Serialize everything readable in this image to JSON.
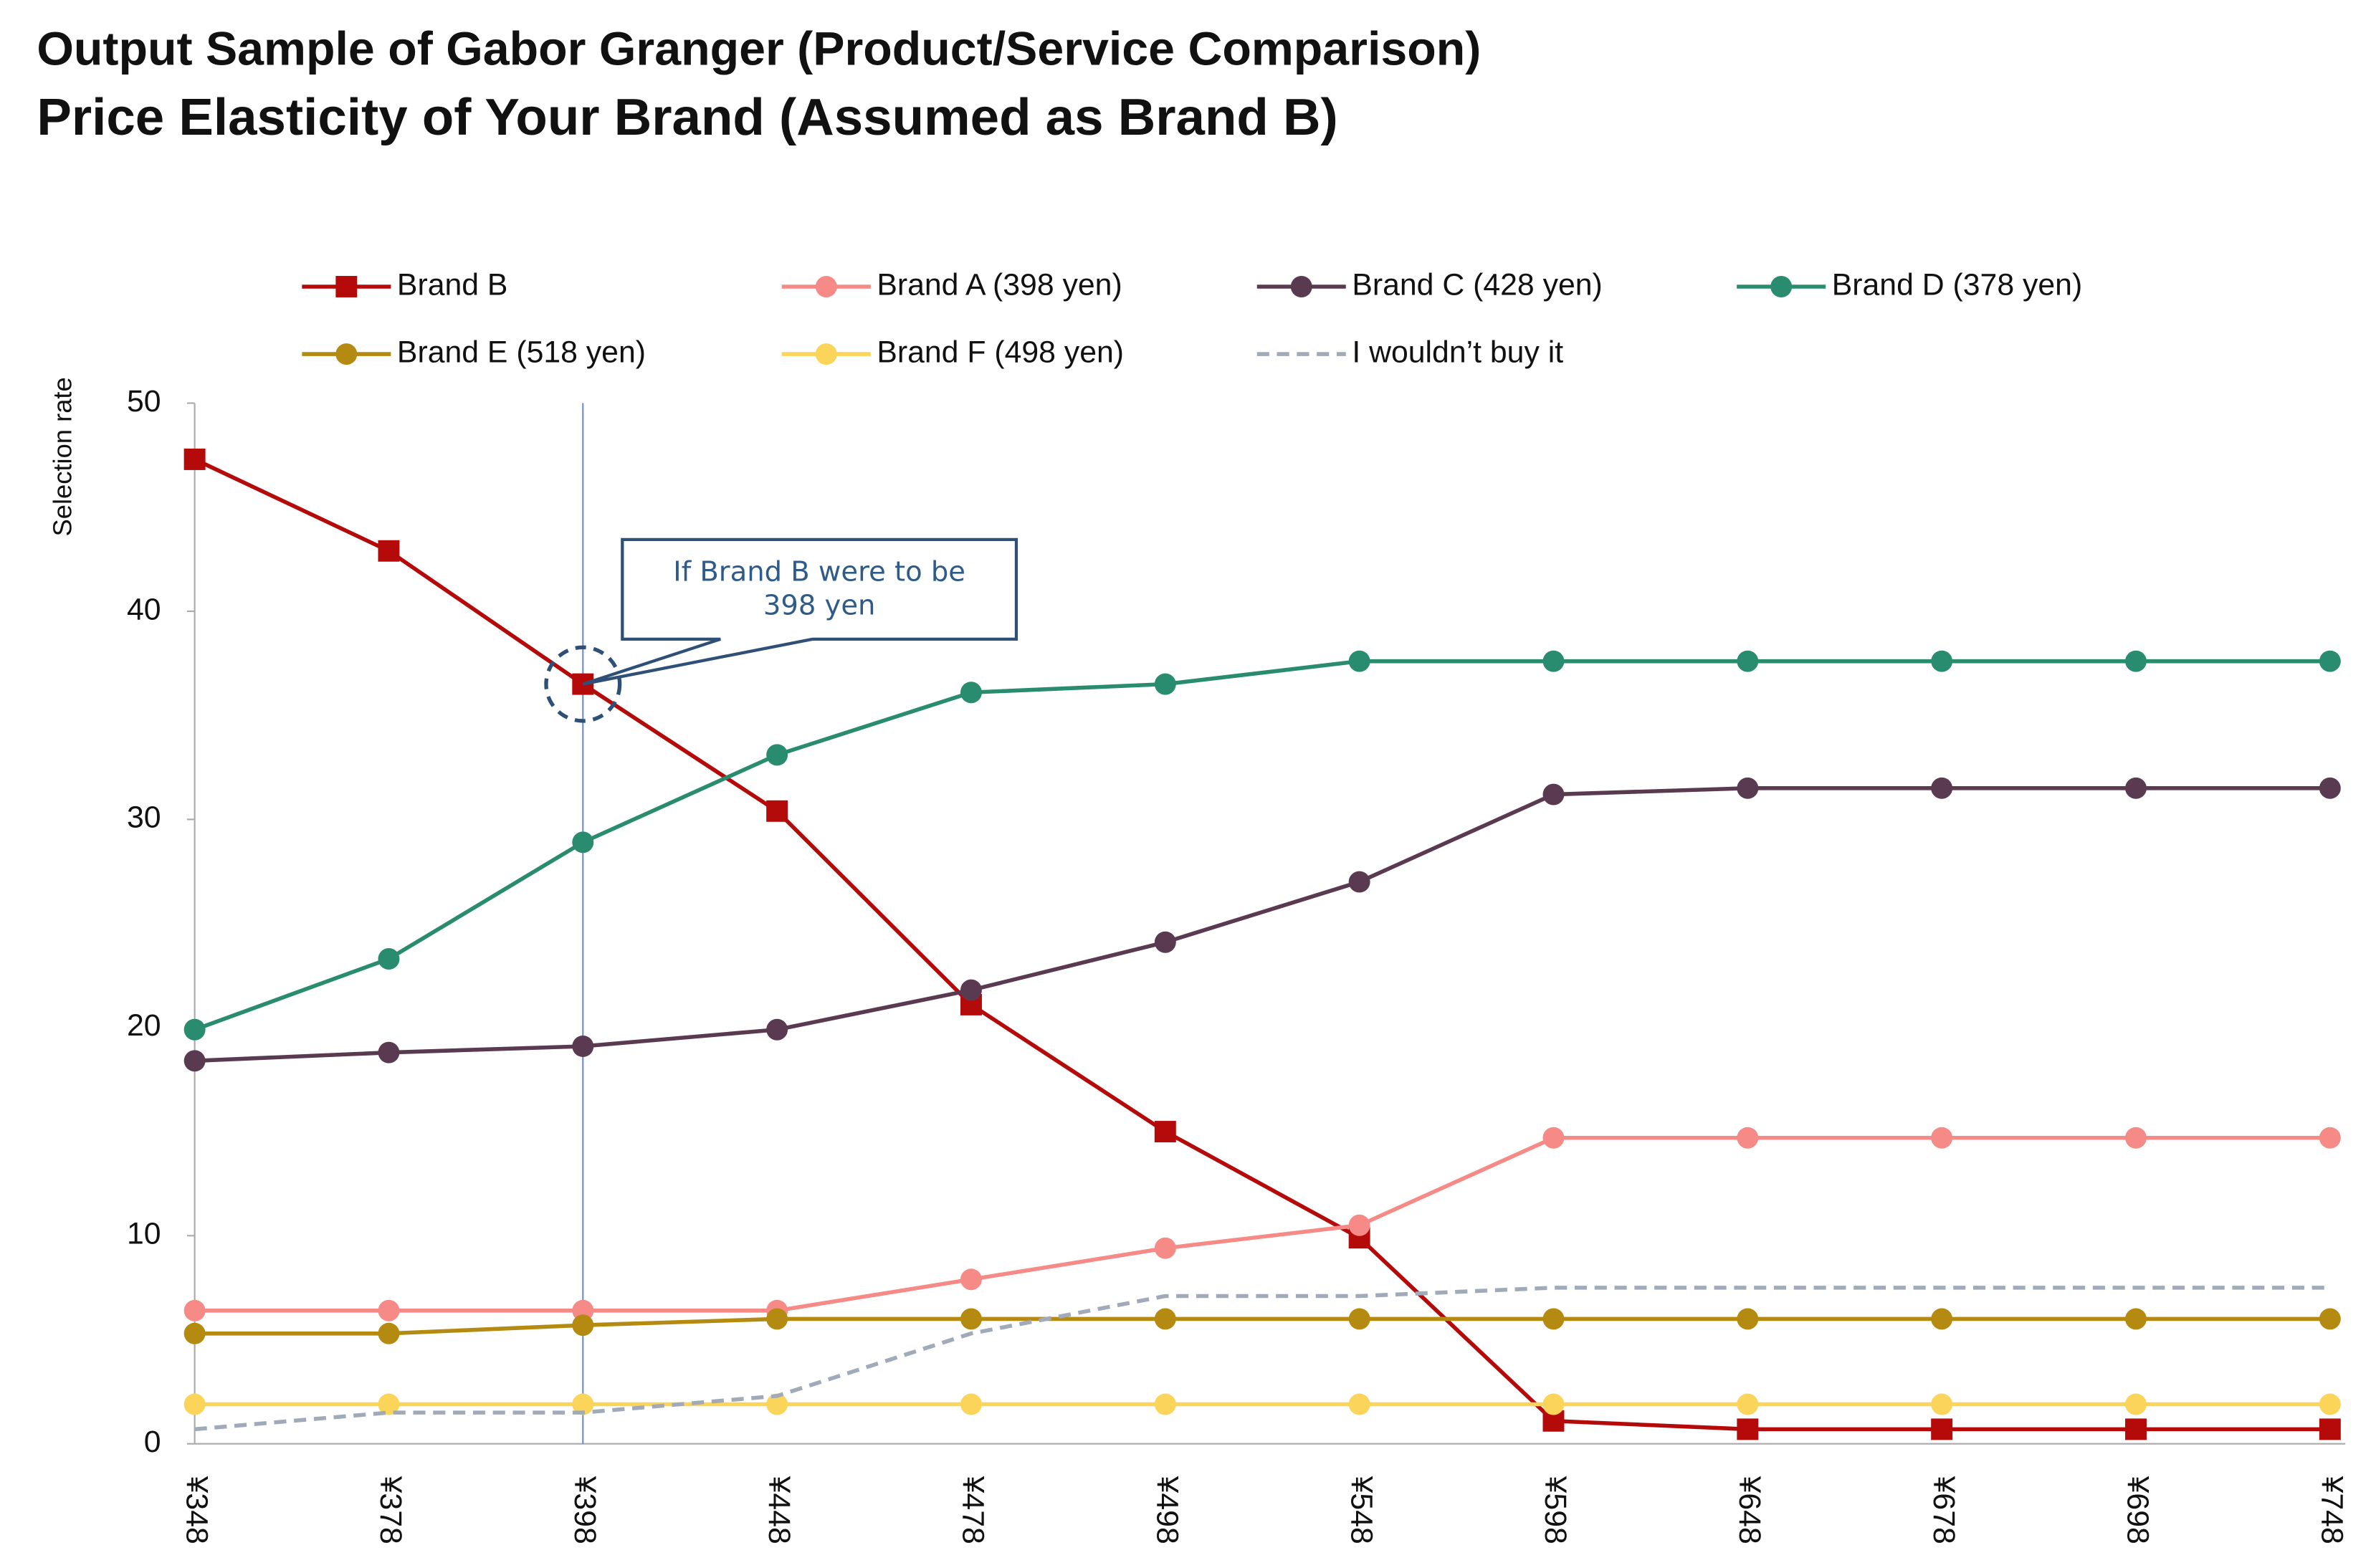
{
  "chart_data": {
    "type": "line",
    "title": "Output Sample of Gabor Granger (Product/Service Comparison)",
    "subtitle": "Price Elasticity of Your Brand (Assumed as Brand B)",
    "y_label": "Selection rate",
    "categories": [
      "¥348",
      "¥378",
      "¥398",
      "¥448",
      "¥478",
      "¥498",
      "¥548",
      "¥598",
      "¥648",
      "¥678",
      "¥698",
      "¥748"
    ],
    "ylim": [
      0,
      50
    ],
    "yticks": [
      0,
      10,
      20,
      30,
      40,
      50
    ],
    "grid": false,
    "annotation": {
      "text": "If Brand B were to be 398 yen",
      "x": "¥398"
    },
    "series": [
      {
        "name": "Brand B",
        "color": "#b50a0a",
        "marker": "square",
        "values": [
          47.3,
          42.9,
          36.5,
          30.4,
          21.1,
          15.0,
          9.9,
          1.1,
          0.7,
          0.7,
          0.7,
          0.7
        ]
      },
      {
        "name": "Brand A (398 yen)",
        "color": "#f58a86",
        "marker": "circle",
        "values": [
          6.4,
          6.4,
          6.4,
          6.4,
          7.9,
          9.4,
          10.5,
          14.7,
          14.7,
          14.7,
          14.7,
          14.7
        ]
      },
      {
        "name": "Brand C (428 yen)",
        "color": "#5a3a50",
        "marker": "circle",
        "values": [
          18.4,
          18.8,
          19.1,
          19.9,
          21.8,
          24.1,
          27.0,
          31.2,
          31.5,
          31.5,
          31.5,
          31.5
        ]
      },
      {
        "name": "Brand D (378 yen)",
        "color": "#2a8c6e",
        "marker": "circle",
        "values": [
          19.9,
          23.3,
          28.9,
          33.1,
          36.1,
          36.5,
          37.6,
          37.6,
          37.6,
          37.6,
          37.6,
          37.6
        ]
      },
      {
        "name": "Brand E (518 yen)",
        "color": "#b58a10",
        "marker": "circle",
        "values": [
          5.3,
          5.3,
          5.7,
          6.0,
          6.0,
          6.0,
          6.0,
          6.0,
          6.0,
          6.0,
          6.0,
          6.0
        ]
      },
      {
        "name": "Brand F (498 yen)",
        "color": "#fad55a",
        "marker": "circle",
        "values": [
          1.9,
          1.9,
          1.9,
          1.9,
          1.9,
          1.9,
          1.9,
          1.9,
          1.9,
          1.9,
          1.9,
          1.9
        ]
      },
      {
        "name": "I wouldn’t buy it",
        "color": "#a0aab8",
        "marker": "none",
        "dash": true,
        "values": [
          0.7,
          1.5,
          1.5,
          2.3,
          5.3,
          7.1,
          7.1,
          7.5,
          7.5,
          7.5,
          7.5,
          7.5
        ]
      }
    ]
  }
}
